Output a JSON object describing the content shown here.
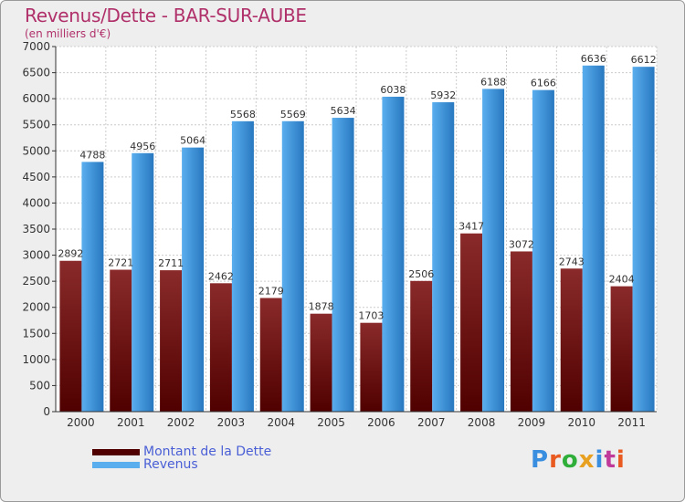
{
  "chart_data": {
    "type": "bar",
    "title": "Revenus/Dette - BAR-SUR-AUBE",
    "subtitle": "(en milliers d'€)",
    "categories": [
      "2000",
      "2001",
      "2002",
      "2003",
      "2004",
      "2005",
      "2006",
      "2007",
      "2008",
      "2009",
      "2010",
      "2011"
    ],
    "series": [
      {
        "name": "Montant de la Dette",
        "values": [
          2892,
          2721,
          2711,
          2462,
          2179,
          1878,
          1703,
          2506,
          3417,
          3072,
          2743,
          2404
        ]
      },
      {
        "name": "Revenus",
        "values": [
          4788,
          4956,
          5064,
          5568,
          5569,
          5634,
          6038,
          5932,
          6188,
          6166,
          6636,
          6612
        ]
      }
    ],
    "ylim": [
      0,
      7000
    ],
    "yticks": [
      0,
      500,
      1000,
      1500,
      2000,
      2500,
      3000,
      3500,
      4000,
      4500,
      5000,
      5500,
      6000,
      6500,
      7000
    ],
    "grid": true,
    "legend_position": "bottom-left",
    "colors": {
      "debt_top": "#8a2a2a",
      "debt_bottom": "#500000",
      "revenue_top": "#5aaeee",
      "revenue_bottom": "#2878c0",
      "title": "#b0306a",
      "legend_text": "#4a5fd6"
    }
  },
  "logo": {
    "letters": [
      "P",
      "r",
      "o",
      "x",
      "i",
      "t",
      "i"
    ],
    "colors": [
      "#3a8ee0",
      "#e85a20",
      "#2fae3a",
      "#e8a020",
      "#3a8ee0",
      "#c03a9a",
      "#e85a20"
    ]
  }
}
